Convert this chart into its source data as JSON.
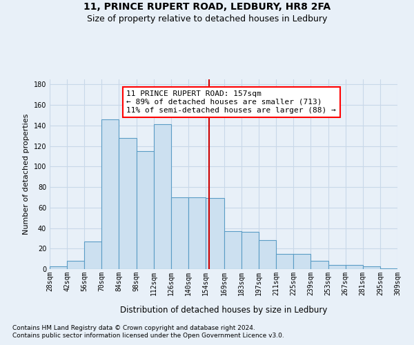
{
  "title": "11, PRINCE RUPERT ROAD, LEDBURY, HR8 2FA",
  "subtitle": "Size of property relative to detached houses in Ledbury",
  "xlabel": "Distribution of detached houses by size in Ledbury",
  "ylabel": "Number of detached properties",
  "footnote1": "Contains HM Land Registry data © Crown copyright and database right 2024.",
  "footnote2": "Contains public sector information licensed under the Open Government Licence v3.0.",
  "annotation_line1": "11 PRINCE RUPERT ROAD: 157sqm",
  "annotation_line2": "← 89% of detached houses are smaller (713)",
  "annotation_line3": "11% of semi-detached houses are larger (88) →",
  "bar_left_edges": [
    28,
    42,
    56,
    70,
    84,
    98,
    112,
    126,
    140,
    154,
    169,
    183,
    197,
    211,
    225,
    239,
    253,
    267,
    281,
    295
  ],
  "bar_widths": [
    14,
    14,
    14,
    14,
    14,
    14,
    14,
    14,
    14,
    15,
    14,
    14,
    14,
    14,
    14,
    14,
    14,
    14,
    14,
    14
  ],
  "bar_heights": [
    3,
    8,
    27,
    146,
    128,
    115,
    141,
    70,
    70,
    69,
    37,
    36,
    28,
    15,
    15,
    8,
    4,
    4,
    3,
    1
  ],
  "bar_color": "#cce0f0",
  "bar_edge_color": "#5a9cc5",
  "vline_color": "#cc0000",
  "vline_x": 157,
  "xlim": [
    28,
    309
  ],
  "ylim": [
    0,
    185
  ],
  "yticks": [
    0,
    20,
    40,
    60,
    80,
    100,
    120,
    140,
    160,
    180
  ],
  "xtick_labels": [
    "28sqm",
    "42sqm",
    "56sqm",
    "70sqm",
    "84sqm",
    "98sqm",
    "112sqm",
    "126sqm",
    "140sqm",
    "154sqm",
    "169sqm",
    "183sqm",
    "197sqm",
    "211sqm",
    "225sqm",
    "239sqm",
    "253sqm",
    "267sqm",
    "281sqm",
    "295sqm",
    "309sqm"
  ],
  "background_color": "#e8f0f8",
  "grid_color": "#c8d8e8",
  "title_fontsize": 10,
  "subtitle_fontsize": 9,
  "xlabel_fontsize": 8.5,
  "ylabel_fontsize": 8,
  "tick_fontsize": 7,
  "annotation_fontsize": 8,
  "footnote_fontsize": 6.5
}
